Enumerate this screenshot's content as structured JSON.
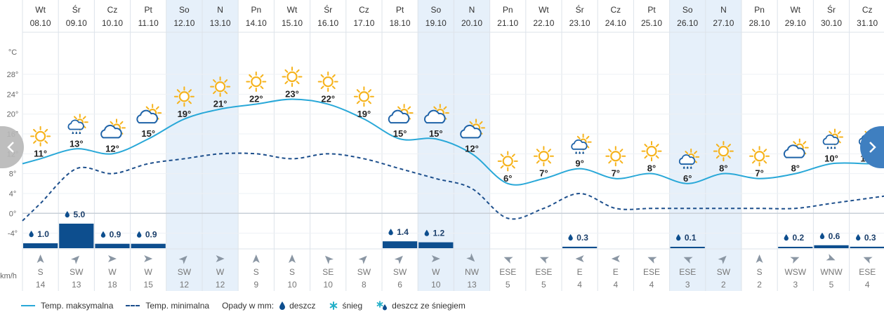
{
  "chart_data": {
    "type": "line",
    "days": [
      {
        "dow": "Wt",
        "date": "08.10"
      },
      {
        "dow": "Śr",
        "date": "09.10"
      },
      {
        "dow": "Cz",
        "date": "10.10"
      },
      {
        "dow": "Pt",
        "date": "11.10"
      },
      {
        "dow": "So",
        "date": "12.10"
      },
      {
        "dow": "N",
        "date": "13.10"
      },
      {
        "dow": "Pn",
        "date": "14.10"
      },
      {
        "dow": "Wt",
        "date": "15.10"
      },
      {
        "dow": "Śr",
        "date": "16.10"
      },
      {
        "dow": "Cz",
        "date": "17.10"
      },
      {
        "dow": "Pt",
        "date": "18.10"
      },
      {
        "dow": "So",
        "date": "19.10"
      },
      {
        "dow": "N",
        "date": "20.10"
      },
      {
        "dow": "Pn",
        "date": "21.10"
      },
      {
        "dow": "Wt",
        "date": "22.10"
      },
      {
        "dow": "Śr",
        "date": "23.10"
      },
      {
        "dow": "Cz",
        "date": "24.10"
      },
      {
        "dow": "Pt",
        "date": "25.10"
      },
      {
        "dow": "So",
        "date": "26.10"
      },
      {
        "dow": "N",
        "date": "27.10"
      },
      {
        "dow": "Pn",
        "date": "28.10"
      },
      {
        "dow": "Wt",
        "date": "29.10"
      },
      {
        "dow": "Śr",
        "date": "30.10"
      },
      {
        "dow": "Cz",
        "date": "31.10"
      }
    ],
    "weekend_indices": [
      4,
      5,
      11,
      12,
      18,
      19
    ],
    "y_unit": "°C",
    "y_ticks": [
      28,
      24,
      20,
      16,
      12,
      8,
      4,
      0,
      -4
    ],
    "ylim": [
      -6,
      32
    ],
    "grid": true,
    "series": [
      {
        "name": "Temp. maksymalna",
        "style": "solid",
        "color": "#29a8d8",
        "values": [
          11,
          13,
          12,
          15,
          19,
          21,
          22,
          23,
          22,
          19,
          15,
          15,
          12,
          6,
          7,
          9,
          7,
          8,
          6,
          8,
          7,
          8,
          10,
          10
        ]
      },
      {
        "name": "Temp. minimalna",
        "style": "dashed",
        "color": "#1d4f8c",
        "values": [
          2,
          9,
          8,
          10,
          11,
          12,
          12,
          11,
          12,
          11,
          9,
          7,
          5,
          -1,
          1,
          4,
          1,
          1,
          1,
          1,
          1,
          1,
          2,
          3
        ]
      }
    ],
    "max_labels": [
      "11°",
      "13°",
      "12°",
      "15°",
      "19°",
      "21°",
      "22°",
      "23°",
      "22°",
      "19°",
      "15°",
      "15°",
      "12°",
      "6°",
      "7°",
      "9°",
      "7°",
      "8°",
      "6°",
      "8°",
      "7°",
      "8°",
      "10°",
      "10°"
    ],
    "weather_icons": [
      "sun",
      "rain-sun",
      "cloud-sun",
      "cloud-sun",
      "sun",
      "sun",
      "sun",
      "sun",
      "sun",
      "sun",
      "cloud-sun",
      "cloud-sun",
      "cloud-sun",
      "sun",
      "sun",
      "rain-sun",
      "sun",
      "sun",
      "rain-sun",
      "sun",
      "sun",
      "cloud-sun",
      "rain-sun",
      "rain-sun"
    ],
    "precipitation": {
      "unit": "mm",
      "values": [
        1.0,
        5.0,
        0.9,
        0.9,
        null,
        null,
        null,
        null,
        null,
        null,
        1.4,
        1.2,
        null,
        null,
        null,
        0.3,
        null,
        null,
        0.1,
        null,
        null,
        0.2,
        0.6,
        0.3
      ],
      "labels": [
        "1.0",
        "5.0",
        "0.9",
        "0.9",
        "",
        "",
        "",
        "",
        "",
        "",
        "1.4",
        "1.2",
        "",
        "",
        "",
        "0.3",
        "",
        "",
        "0.1",
        "",
        "",
        "0.2",
        "0.6",
        "0.3"
      ]
    },
    "wind": {
      "unit": "km/h",
      "directions": [
        "S",
        "SW",
        "W",
        "W",
        "SW",
        "W",
        "S",
        "S",
        "SE",
        "SW",
        "SW",
        "W",
        "NW",
        "ESE",
        "ESE",
        "E",
        "E",
        "ESE",
        "ESE",
        "SW",
        "S",
        "WSW",
        "WNW",
        "ESE"
      ],
      "speeds": [
        14,
        13,
        18,
        15,
        12,
        12,
        9,
        10,
        10,
        8,
        6,
        10,
        13,
        5,
        5,
        4,
        4,
        4,
        3,
        2,
        2,
        3,
        5,
        4
      ]
    },
    "legend": {
      "max_label": "Temp. maksymalna",
      "min_label": "Temp. minimalna",
      "precip_title": "Opady w mm:",
      "rain_label": "deszcz",
      "snow_label": "śnieg",
      "mixed_label": "deszcz ze śniegiem"
    }
  },
  "colors": {
    "weekend_bg": "#e6f0fa",
    "grid": "#dde3ea",
    "precip_bar": "#0d4e8e",
    "sun": "#f6b31c",
    "cloud": "#1f63a8",
    "drop": "#0d4e8e",
    "snow": "#24b0c8",
    "nav_left": "#b8b8b8",
    "nav_right": "#3f7fc0"
  },
  "nav": {
    "prev_icon": "chevron-left-icon",
    "next_icon": "chevron-right-icon"
  }
}
